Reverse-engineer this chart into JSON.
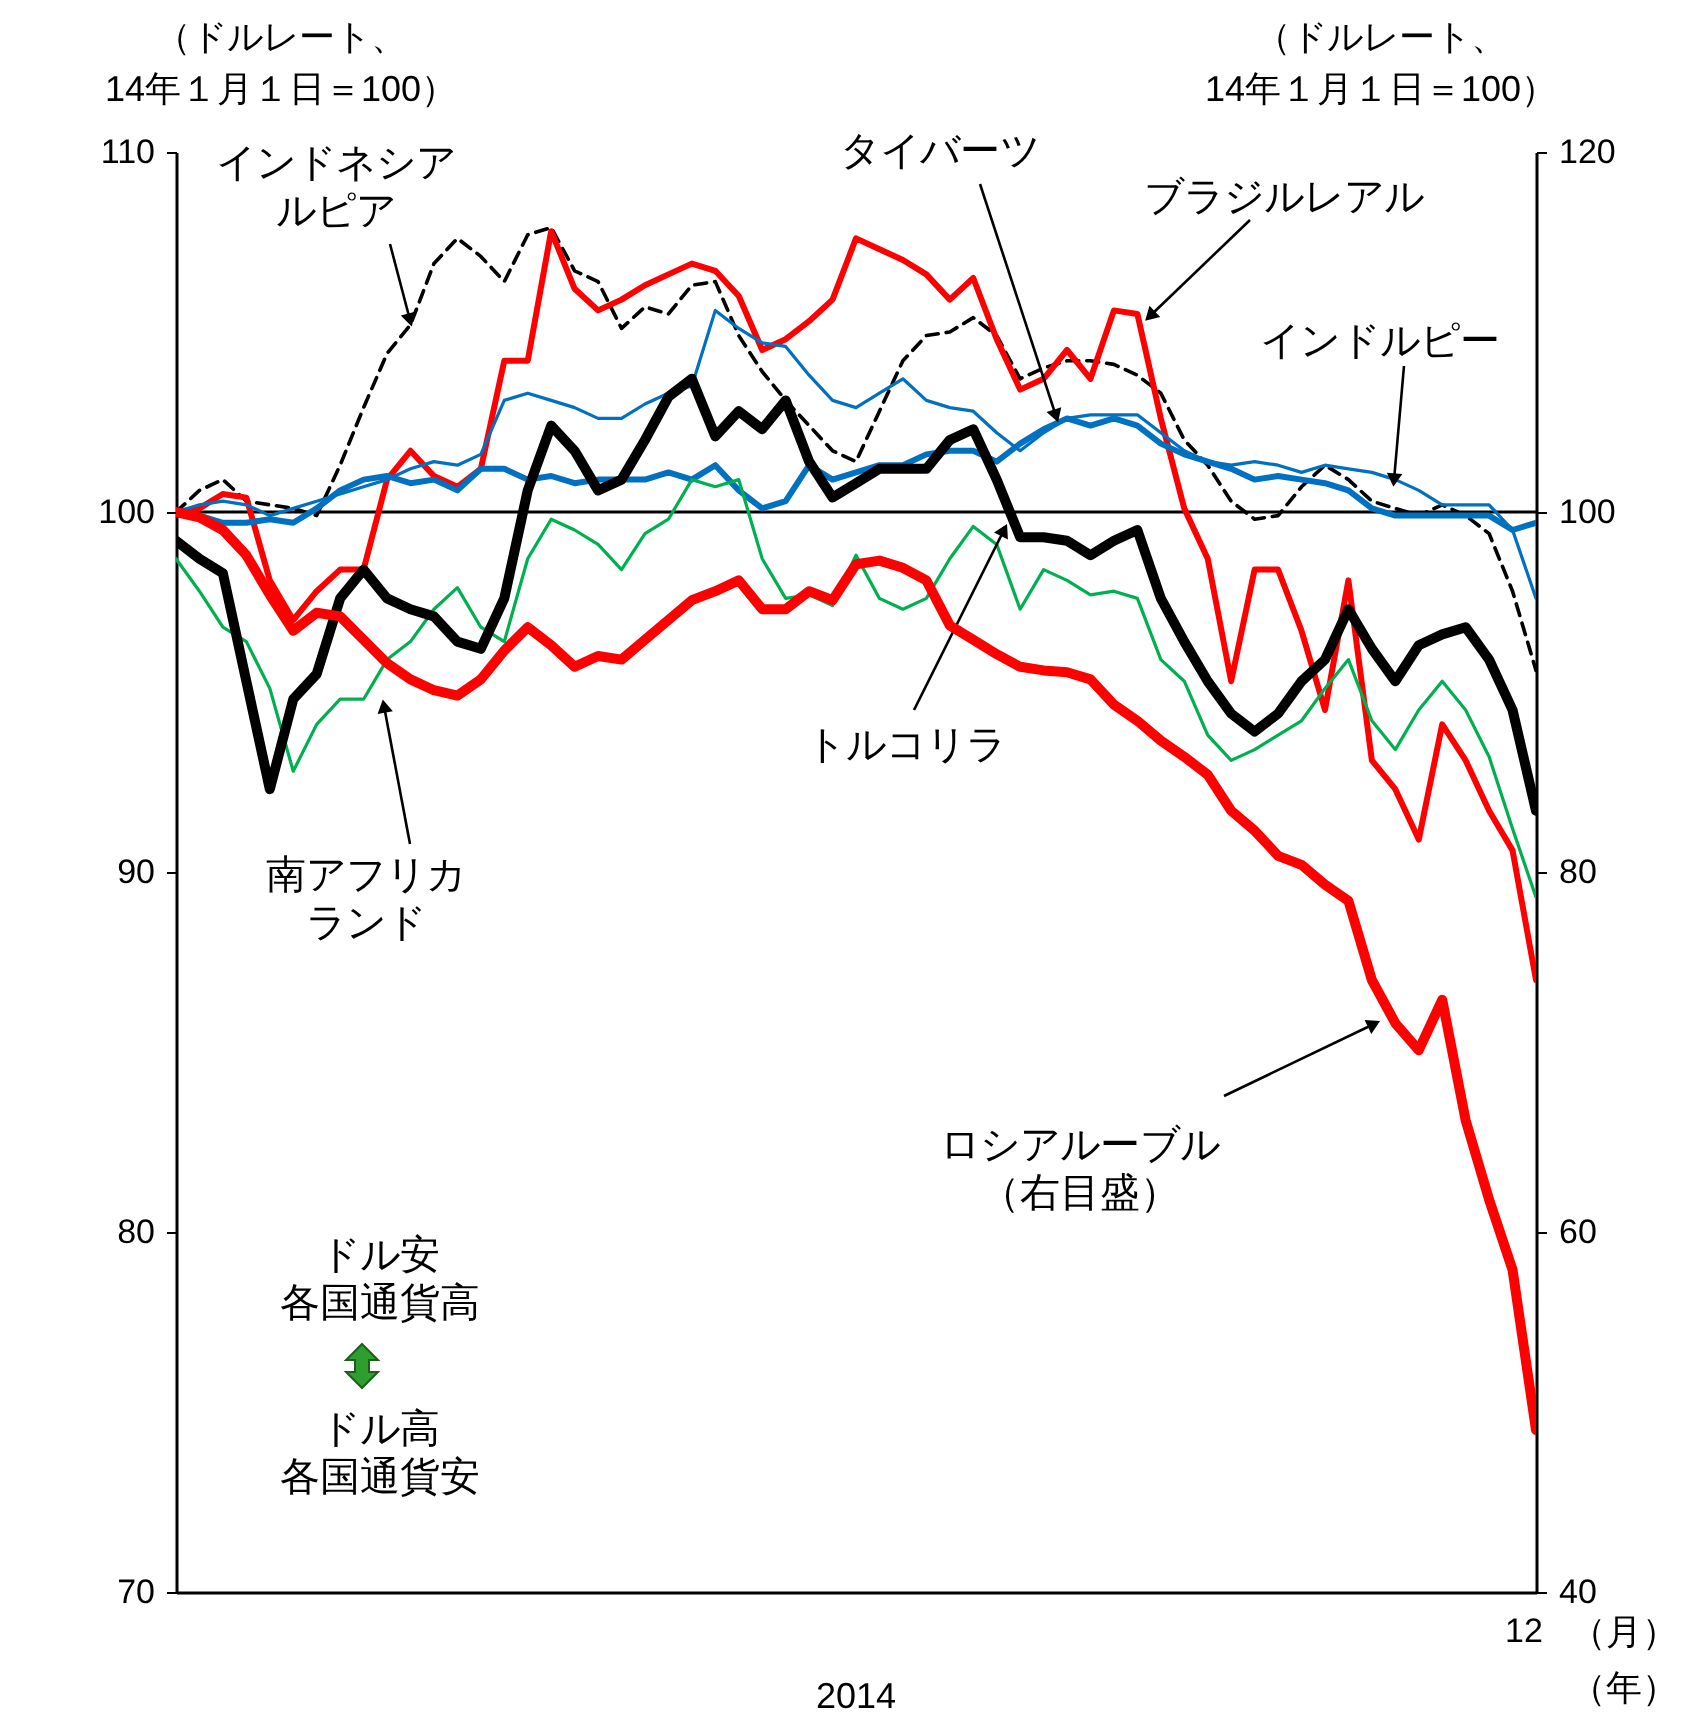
{
  "chart_data": {
    "type": "line",
    "ylabel": "（ドルレート、\n14年１月１日＝100）",
    "y2label": "（ドルレート、\n14年１月１日＝100）",
    "categories": [
      null,
      null,
      null,
      null,
      null,
      null,
      null,
      null,
      null,
      null,
      null,
      null,
      null,
      null,
      null,
      null,
      null,
      null,
      null,
      null,
      null,
      null,
      null,
      null,
      null,
      null,
      null,
      null,
      null,
      null,
      null,
      null,
      null,
      null,
      null,
      null,
      null,
      null,
      null,
      null,
      null,
      null,
      null,
      null,
      null,
      null,
      null,
      null,
      null,
      null,
      null,
      null,
      null,
      null,
      null,
      null,
      null,
      null,
      null
    ],
    "ylim": [
      70,
      110
    ],
    "yticks": [
      70,
      80,
      90,
      100,
      110
    ],
    "y2lim": [
      40,
      120
    ],
    "y2ticks": [
      40,
      60,
      80,
      100,
      120
    ],
    "series": [
      {
        "color": "#000000",
        "line_style": "dashed",
        "values": [
          100,
          100.6,
          100.9,
          100.3,
          100.2,
          100.1,
          99.9,
          101.3,
          102.9,
          104.4,
          105.2,
          106.9,
          107.6,
          107.1,
          106.4,
          107.7,
          107.9,
          106.7,
          106.4,
          105.1,
          105.7,
          105.5,
          106.3,
          106.4,
          104.9,
          103.9,
          103.1,
          102.4,
          101.7,
          101.4,
          102.8,
          104.2,
          104.9,
          105.0,
          105.4,
          104.9,
          103.7,
          104.0,
          104.2,
          104.2,
          104.1,
          103.8,
          103.3,
          102.0,
          101.3,
          100.3,
          99.8,
          99.9,
          100.7,
          101.3,
          100.9,
          100.3,
          100.1,
          99.9,
          100.2,
          99.9,
          99.4,
          97.8,
          95.6
        ]
      },
      {
        "color": "#ff0000",
        "values": [
          100,
          100.1,
          100.5,
          100.4,
          98.1,
          97.0,
          97.8,
          98.4,
          98.4,
          100.9,
          101.7,
          101.0,
          100.7,
          101.2,
          104.2,
          104.2,
          107.8,
          106.2,
          105.6,
          105.9,
          106.3,
          106.6,
          106.9,
          106.7,
          106.0,
          104.5,
          104.8,
          105.3,
          105.9,
          107.6,
          107.3,
          107.0,
          106.6,
          105.9,
          106.5,
          104.8,
          103.4,
          103.7,
          104.5,
          103.7,
          105.6,
          105.5,
          102.6,
          100.1,
          98.7,
          95.3,
          98.4,
          98.4,
          96.7,
          94.5,
          98.1,
          93.1,
          92.3,
          90.9,
          94.1,
          93.1,
          91.7,
          90.6,
          87.0
        ]
      },
      {
        "color": "#0070c0",
        "values": [
          100,
          99.9,
          99.7,
          99.7,
          99.8,
          99.7,
          100.1,
          100.6,
          100.9,
          101.0,
          100.8,
          100.9,
          100.6,
          101.2,
          101.2,
          100.9,
          101.0,
          100.8,
          100.9,
          100.9,
          100.9,
          101.1,
          100.9,
          101.3,
          100.6,
          100.1,
          100.3,
          101.3,
          100.9,
          101.1,
          101.3,
          101.3,
          101.6,
          101.7,
          101.7,
          101.4,
          101.9,
          102.3,
          102.6,
          102.4,
          102.6,
          102.4,
          101.9,
          101.6,
          101.4,
          101.2,
          100.9,
          101.0,
          100.9,
          100.8,
          100.6,
          100.1,
          99.9,
          99.9,
          99.9,
          99.9,
          99.9,
          99.5,
          99.7
        ]
      },
      {
        "color": "#0070c0",
        "values": [
          100,
          100.2,
          100.3,
          100.2,
          99.9,
          100.1,
          100.3,
          100.5,
          100.7,
          100.9,
          101.2,
          101.4,
          101.3,
          101.6,
          103.1,
          103.3,
          103.1,
          102.9,
          102.6,
          102.6,
          103.0,
          103.3,
          103.5,
          105.6,
          105.1,
          104.7,
          104.6,
          103.8,
          103.1,
          102.9,
          103.3,
          103.7,
          103.1,
          102.9,
          102.8,
          102.2,
          101.7,
          102.2,
          102.6,
          102.7,
          102.7,
          102.7,
          102.2,
          101.7,
          101.4,
          101.3,
          101.4,
          101.3,
          101.1,
          101.3,
          101.2,
          101.1,
          100.9,
          100.6,
          100.2,
          100.2,
          100.2,
          99.5,
          97.6
        ]
      },
      {
        "color": "#00b050",
        "values": [
          98.7,
          97.8,
          96.8,
          96.4,
          95.1,
          92.8,
          94.1,
          94.8,
          94.8,
          95.9,
          96.4,
          97.3,
          97.9,
          96.8,
          96.4,
          98.7,
          99.8,
          99.5,
          99.1,
          98.4,
          99.4,
          99.8,
          100.9,
          100.7,
          100.9,
          98.7,
          97.6,
          97.7,
          97.4,
          98.8,
          97.6,
          97.3,
          97.6,
          98.7,
          99.6,
          99.1,
          97.3,
          98.4,
          98.1,
          97.7,
          97.8,
          97.6,
          95.9,
          95.3,
          93.8,
          93.1,
          93.4,
          93.8,
          94.2,
          95.1,
          95.9,
          94.2,
          93.4,
          94.5,
          95.3,
          94.5,
          93.2,
          91.2,
          89.3
        ]
      },
      {
        "color": "#000000",
        "values": [
          99.2,
          98.7,
          98.3,
          95.3,
          92.3,
          94.8,
          95.5,
          97.6,
          98.4,
          97.6,
          97.3,
          97.1,
          96.4,
          96.2,
          97.6,
          100.6,
          102.4,
          101.7,
          100.6,
          100.9,
          102.0,
          103.2,
          103.7,
          102.1,
          102.8,
          102.3,
          103.1,
          101.4,
          100.4,
          100.8,
          101.2,
          101.2,
          101.2,
          102.0,
          102.3,
          100.9,
          99.3,
          99.3,
          99.2,
          98.8,
          99.2,
          99.5,
          97.6,
          96.4,
          95.3,
          94.4,
          93.9,
          94.4,
          95.3,
          95.9,
          97.3,
          96.2,
          95.3,
          96.3,
          96.6,
          96.8,
          95.9,
          94.5,
          91.7
        ]
      },
      {
        "color": "#ff0000",
        "axis": "y2",
        "values": [
          100,
          99.7,
          99.0,
          97.6,
          95.4,
          93.4,
          94.4,
          94.2,
          92.9,
          91.6,
          90.7,
          90.1,
          89.8,
          90.7,
          92.3,
          93.6,
          92.6,
          91.4,
          92.0,
          91.8,
          92.9,
          94.0,
          95.1,
          95.6,
          96.2,
          94.6,
          94.6,
          95.6,
          95.1,
          97.1,
          97.3,
          96.9,
          96.2,
          93.7,
          92.9,
          92.1,
          91.4,
          91.2,
          91.1,
          90.7,
          89.3,
          88.4,
          87.3,
          86.4,
          85.4,
          83.4,
          82.3,
          80.9,
          80.4,
          79.3,
          78.4,
          74.0,
          71.6,
          70.1,
          72.9,
          66.2,
          61.8,
          57.9,
          49.0
        ]
      }
    ],
    "ref_lines": [
      {
        "axis": "y",
        "value": 100,
        "color": "#000000"
      }
    ],
    "annotations": [
      "インドネシアルピア",
      "タイバーツ",
      "ブラジルレアル",
      "インドルピー",
      "トルコリラ",
      "南アフリカランド",
      "ロシアルーブル（右目盛）",
      "ドル安各国通貨高",
      "ドル高各国通貨安",
      "12",
      "2014",
      "（月）",
      "（年）"
    ]
  }
}
